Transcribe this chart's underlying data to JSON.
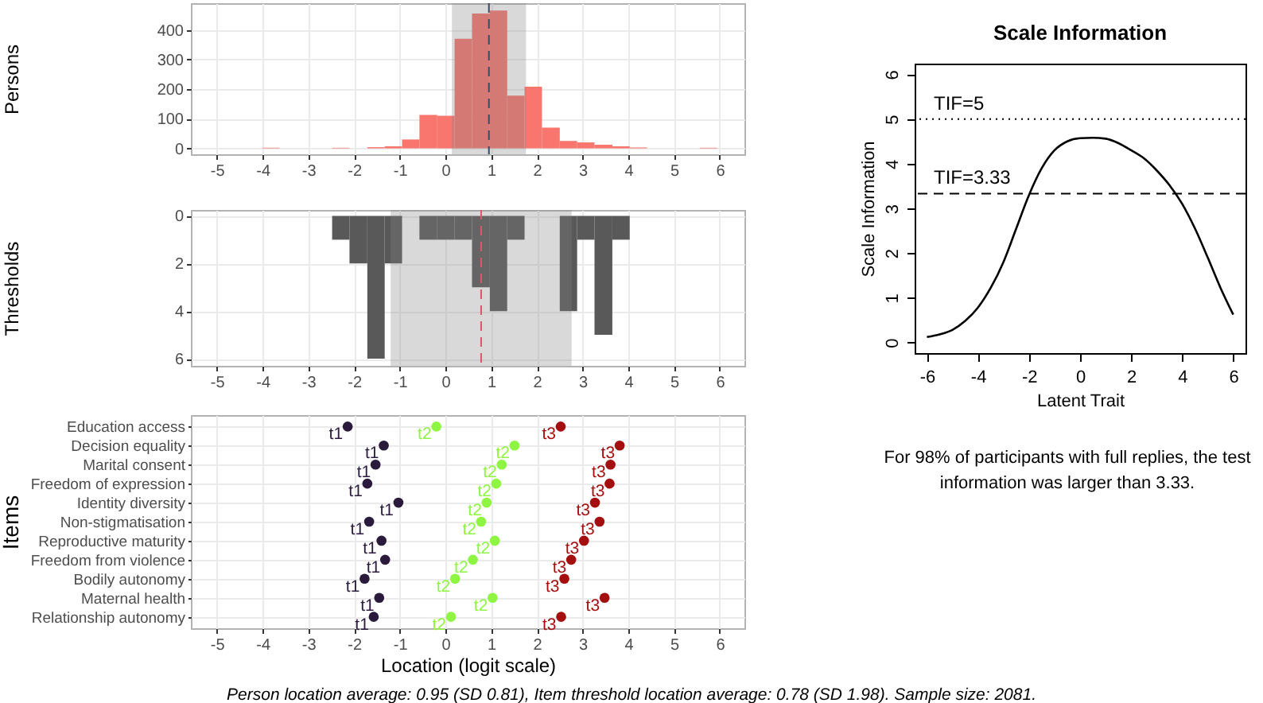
{
  "chart_data": [
    {
      "type": "histogram",
      "ylabel": "Persons",
      "bins": [
        -4.01,
        -3.63,
        -2.48,
        -2.1,
        -1.71,
        -1.33,
        -0.95,
        -0.57,
        -0.18,
        0.2,
        0.58,
        0.97,
        1.35,
        1.73,
        2.11,
        2.5,
        2.88,
        3.26,
        3.65,
        4.03,
        4.41,
        5.56,
        5.94
      ],
      "values": [
        2,
        0,
        2,
        0,
        4,
        7,
        30,
        113,
        110,
        370,
        455,
        465,
        178,
        208,
        70,
        25,
        20,
        12,
        7,
        3,
        0,
        2
      ],
      "color": "#f8766d",
      "xlim": [
        -5.57,
        6.54
      ],
      "xticks": [
        -5,
        -4,
        -3,
        -2,
        -1,
        0,
        1,
        2,
        3,
        4,
        5,
        6
      ],
      "ylim": [
        -20,
        490
      ],
      "yticks": [
        0,
        100,
        200,
        300,
        400
      ],
      "grid": true,
      "bands": [
        {
          "axis": "x",
          "from": 0.14,
          "to": 1.76,
          "color": "#808080"
        }
      ],
      "ref_lines": [
        {
          "axis": "x",
          "value": 0.95,
          "color": "#3b4a6b",
          "line_style": "dashed"
        }
      ]
    },
    {
      "type": "histogram",
      "ylabel": "Thresholds",
      "bins": [
        -2.48,
        -2.1,
        -1.71,
        -1.33,
        -0.95,
        -0.57,
        -0.18,
        0.2,
        0.58,
        0.97,
        1.35,
        1.73,
        2.5,
        2.88,
        3.26,
        3.65,
        4.03
      ],
      "values": [
        1,
        2,
        6,
        2,
        0,
        1,
        1,
        1,
        3,
        4,
        1,
        0,
        4,
        1,
        5,
        1
      ],
      "color": "#595959",
      "xlim": [
        -5.57,
        6.54
      ],
      "xticks": [
        -5,
        -4,
        -3,
        -2,
        -1,
        0,
        1,
        2,
        3,
        4,
        5,
        6
      ],
      "ylim": [
        6.3,
        -0.25
      ],
      "yticks": [
        0,
        2,
        4,
        6
      ],
      "grid": true,
      "bands": [
        {
          "axis": "x",
          "from": -1.2,
          "to": 2.76,
          "color": "#808080"
        }
      ],
      "ref_lines": [
        {
          "axis": "x",
          "value": 0.78,
          "color": "#e8506a",
          "line_style": "dashed"
        }
      ]
    },
    {
      "type": "scatter",
      "orientation": "horizontal",
      "xlabel": "Location (logit scale)",
      "ylabel": "Items",
      "categories": [
        "Education access",
        "Decision equality",
        "Marital consent",
        "Freedom of expression",
        "Identity diversity",
        "Non-stigmatisation",
        "Reproductive maturity",
        "Freedom from violence",
        "Bodily autonomy",
        "Maternal health",
        "Relationship autonomy"
      ],
      "series": [
        {
          "name": "t1",
          "color": "#2a1b3d",
          "values": [
            -2.14,
            -1.35,
            -1.53,
            -1.71,
            -1.03,
            -1.67,
            -1.4,
            -1.32,
            -1.77,
            -1.45,
            -1.57
          ]
        },
        {
          "name": "t2",
          "color": "#8ef542",
          "values": [
            -0.2,
            1.51,
            1.23,
            1.11,
            0.9,
            0.78,
            1.08,
            0.6,
            0.21,
            1.03,
            0.12
          ]
        },
        {
          "name": "t3",
          "color": "#a40e0e",
          "values": [
            2.52,
            3.81,
            3.61,
            3.59,
            3.27,
            3.37,
            3.03,
            2.75,
            2.6,
            3.48,
            2.53
          ]
        }
      ],
      "xlim": [
        -5.57,
        6.54
      ],
      "xticks": [
        -5,
        -4,
        -3,
        -2,
        -1,
        0,
        1,
        2,
        3,
        4,
        5,
        6
      ],
      "marker": "circle",
      "grid": true,
      "annotations": [
        "Person location average: 0.95 (SD 0.81), Item threshold location average: 0.78 (SD 1.98). Sample size: 2081."
      ]
    },
    {
      "type": "line",
      "title": "Scale Information",
      "xlabel": "Latent Trait",
      "ylabel": "Scale Information",
      "x": [
        -6,
        -5.5,
        -5,
        -4.5,
        -4,
        -3.5,
        -3,
        -2.5,
        -2,
        -1.5,
        -1,
        -0.5,
        0,
        0.5,
        1,
        1.5,
        2,
        2.5,
        3,
        3.5,
        4,
        4.5,
        5,
        5.5,
        6
      ],
      "series": [
        {
          "color": "#000000",
          "values": [
            0.12,
            0.18,
            0.28,
            0.48,
            0.78,
            1.22,
            1.8,
            2.55,
            3.3,
            3.9,
            4.3,
            4.5,
            4.57,
            4.58,
            4.56,
            4.46,
            4.3,
            4.12,
            3.85,
            3.52,
            3.1,
            2.55,
            1.9,
            1.22,
            0.62
          ]
        }
      ],
      "xlim": [
        -6.48,
        6.48
      ],
      "xticks": [
        -6,
        -4,
        -2,
        0,
        2,
        4,
        6
      ],
      "ylim": [
        -0.24,
        6.24
      ],
      "yticks": [
        0,
        1,
        2,
        3,
        4,
        5,
        6
      ],
      "grid": false,
      "marker": "none",
      "line_style": "solid",
      "ref_lines": [
        {
          "axis": "y",
          "value": 5,
          "label": "TIF=5",
          "color": "#000000",
          "line_style": "dotted"
        },
        {
          "axis": "y",
          "value": 3.33,
          "label": "TIF=3.33",
          "color": "#000000",
          "line_style": "dashed"
        }
      ],
      "annotations": [
        "For 98% of participants with full replies, the test information was larger than 3.33."
      ]
    }
  ]
}
